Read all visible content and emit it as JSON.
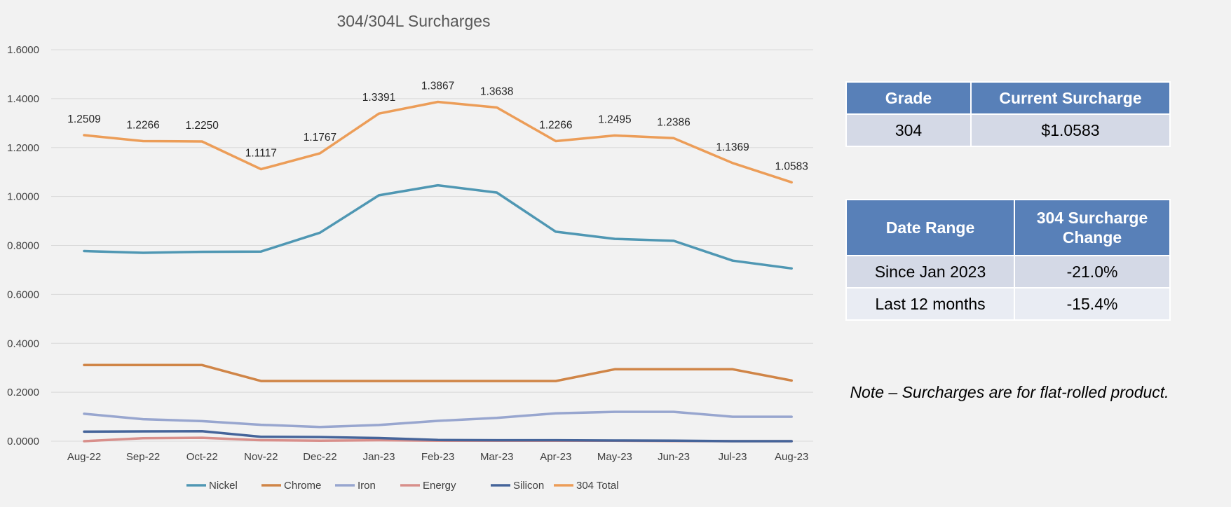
{
  "chart_data": {
    "type": "line",
    "title": "304/304L Surcharges",
    "xlabel": "",
    "ylabel": "",
    "categories": [
      "Aug-22",
      "Sep-22",
      "Oct-22",
      "Nov-22",
      "Dec-22",
      "Jan-23",
      "Feb-23",
      "Mar-23",
      "Apr-23",
      "May-23",
      "Jun-23",
      "Jul-23",
      "Aug-23"
    ],
    "ylim": [
      0,
      1.6
    ],
    "yticks": [
      "0.0000",
      "0.2000",
      "0.4000",
      "0.6000",
      "0.8000",
      "1.0000",
      "1.2000",
      "1.4000",
      "1.6000"
    ],
    "grid": true,
    "legend_position": "bottom",
    "series": [
      {
        "name": "Nickel",
        "color": "#4f97b3",
        "values": [
          0.777,
          0.77,
          0.774,
          0.775,
          0.852,
          1.005,
          1.046,
          1.016,
          0.856,
          0.827,
          0.819,
          0.738,
          0.706
        ]
      },
      {
        "name": "Chrome",
        "color": "#d08547",
        "values": [
          0.311,
          0.311,
          0.311,
          0.246,
          0.246,
          0.246,
          0.246,
          0.246,
          0.246,
          0.294,
          0.294,
          0.294,
          0.248
        ]
      },
      {
        "name": "Iron",
        "color": "#98a6cf",
        "values": [
          0.112,
          0.09,
          0.082,
          0.067,
          0.058,
          0.066,
          0.083,
          0.095,
          0.114,
          0.12,
          0.12,
          0.1,
          0.1
        ]
      },
      {
        "name": "Energy",
        "color": "#d88f8b",
        "values": [
          0.0,
          0.012,
          0.014,
          0.004,
          0.002,
          0.004,
          0.002,
          0.002,
          0.002,
          0.002,
          0.001,
          0.0,
          0.0
        ]
      },
      {
        "name": "Silicon",
        "color": "#45649a",
        "values": [
          0.039,
          0.04,
          0.041,
          0.018,
          0.017,
          0.013,
          0.005,
          0.004,
          0.004,
          0.003,
          0.002,
          0.0,
          0.0
        ]
      },
      {
        "name": "304 Total",
        "color": "#ec9d58",
        "values": [
          1.2509,
          1.2266,
          1.225,
          1.1117,
          1.1767,
          1.3391,
          1.3867,
          1.3638,
          1.2266,
          1.2495,
          1.2386,
          1.1369,
          1.0583
        ],
        "labels": [
          "1.2509",
          "1.2266",
          "1.2250",
          "1.1117",
          "1.1767",
          "1.3391",
          "1.3867",
          "1.3638",
          "1.2266",
          "1.2495",
          "1.2386",
          "1.1369",
          "1.0583"
        ]
      }
    ]
  },
  "grade_table": {
    "headers": [
      "Grade",
      "Current Surcharge"
    ],
    "row": [
      "304",
      "$1.0583"
    ]
  },
  "change_table": {
    "headers": [
      "Date Range",
      "304 Surcharge Change"
    ],
    "rows": [
      [
        "Since Jan 2023",
        "-21.0%"
      ],
      [
        "Last 12 months",
        "-15.4%"
      ]
    ]
  },
  "note": "Note – Surcharges are for flat-rolled product."
}
